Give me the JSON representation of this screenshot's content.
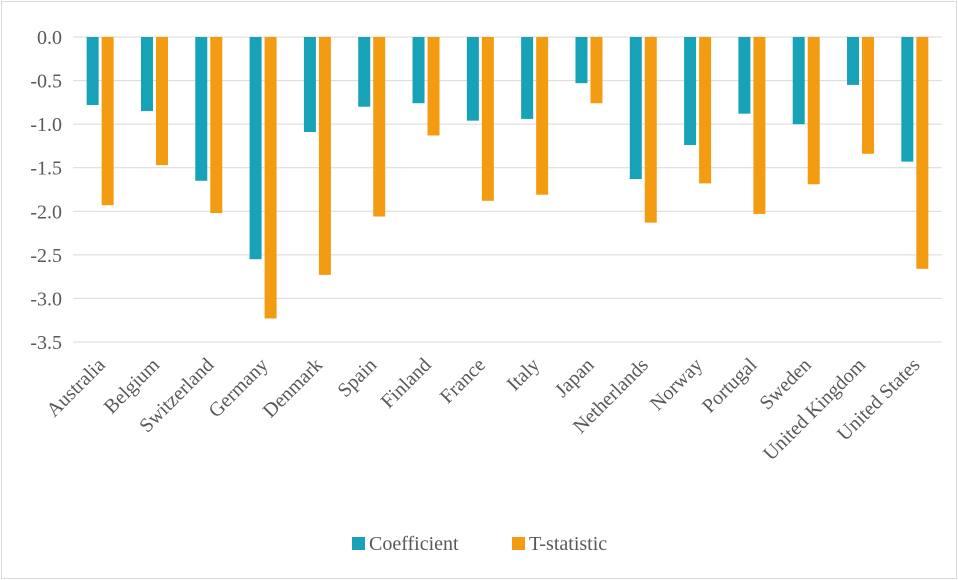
{
  "chart_data": {
    "type": "bar",
    "categories": [
      "Australia",
      "Belgium",
      "Switzerland",
      "Germany",
      "Denmark",
      "Spain",
      "Finland",
      "France",
      "Italy",
      "Japan",
      "Netherlands",
      "Norway",
      "Portugal",
      "Sweden",
      "United Kingdom",
      "United States"
    ],
    "series": [
      {
        "name": "Coefficient",
        "color": "#17a2b8",
        "values": [
          -0.78,
          -0.85,
          -1.65,
          -2.55,
          -1.09,
          -0.8,
          -0.76,
          -0.96,
          -0.94,
          -0.53,
          -1.63,
          -1.24,
          -0.88,
          -1.0,
          -0.55,
          -1.43
        ]
      },
      {
        "name": "T-statistic",
        "color": "#f39c12",
        "values": [
          -1.93,
          -1.47,
          -2.02,
          -3.23,
          -2.73,
          -2.06,
          -1.13,
          -1.88,
          -1.81,
          -0.76,
          -2.13,
          -1.68,
          -2.03,
          -1.69,
          -1.34,
          -2.66
        ]
      }
    ],
    "yticks": [
      "0.0",
      "-0.5",
      "-1.0",
      "-1.5",
      "-2.0",
      "-2.5",
      "-3.0",
      "-3.5"
    ],
    "ylim": [
      -3.5,
      0
    ],
    "grid": true,
    "legend_position": "bottom"
  }
}
